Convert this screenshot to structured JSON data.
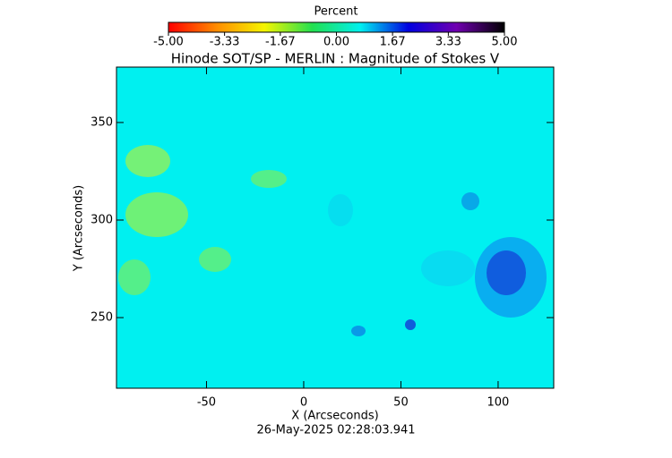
{
  "chart_data": {
    "type": "heatmap",
    "title": "Hinode SOT/SP - MERLIN : Magnitude of Stokes V",
    "xlabel": "X (Arcseconds)",
    "ylabel": "Y (Arcseconds)",
    "footer": "26-May-2025 02:28:03.941",
    "xlim": [
      -96.3,
      128.6
    ],
    "xticks": [
      -50,
      0,
      50,
      100
    ],
    "ylim": [
      213.8,
      378.4
    ],
    "yticks": [
      250,
      300,
      350
    ],
    "colorbar": {
      "label": "Percent",
      "lim": [
        -5,
        5
      ],
      "colors": [
        "#ff0000",
        "#ff8c00",
        "#f5f500",
        "#22e050",
        "#00f0f0",
        "#0000e0",
        "#7000b0",
        "#000000"
      ],
      "ticks": [
        {
          "value": -5,
          "label": "-5.00"
        },
        {
          "value": -3.33,
          "label": "-3.33"
        },
        {
          "value": -1.67,
          "label": "-1.67"
        },
        {
          "value": 0,
          "label": "0.00"
        },
        {
          "value": 1.67,
          "label": "1.67"
        },
        {
          "value": 3.33,
          "label": "3.33"
        },
        {
          "value": 5,
          "label": "5.00"
        }
      ]
    }
  }
}
